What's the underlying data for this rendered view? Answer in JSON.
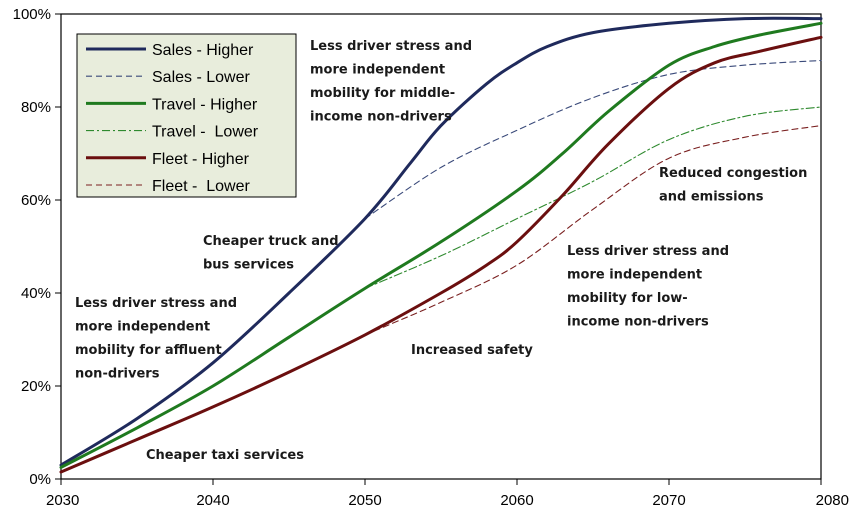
{
  "chart_data": {
    "type": "line",
    "title": "",
    "xlabel": "",
    "ylabel": "",
    "xlim": [
      2030,
      2080
    ],
    "ylim": [
      0,
      100
    ],
    "x_ticks": [
      2030,
      2040,
      2050,
      2060,
      2070,
      2080
    ],
    "y_ticks": [
      0,
      20,
      40,
      60,
      80,
      100
    ],
    "x_tick_labels": [
      "2030",
      "2040",
      "2050",
      "2060",
      "2070",
      "2080"
    ],
    "y_tick_labels": [
      "0%",
      "20%",
      "40%",
      "60%",
      "80%",
      "100%"
    ],
    "grid": false,
    "legend_position": "top-left",
    "series": [
      {
        "name": "Sales - Higher",
        "color": "#1f2a5c",
        "style": "solid",
        "x": [
          2030,
          2035,
          2040,
          2045,
          2050,
          2053,
          2055,
          2058,
          2060,
          2062,
          2065,
          2070,
          2075,
          2080
        ],
        "y": [
          3,
          13,
          25,
          40,
          56,
          68,
          76,
          85,
          89.5,
          93,
          96,
          98,
          99,
          99
        ]
      },
      {
        "name": "Sales - Lower",
        "color": "#3a4a7a",
        "style": "dashed",
        "x": [
          2050,
          2055,
          2060,
          2065,
          2070,
          2075,
          2080
        ],
        "y": [
          56,
          67,
          75,
          82,
          87,
          89,
          90
        ]
      },
      {
        "name": "Travel - Higher",
        "color": "#1f7a1f",
        "style": "solid",
        "x": [
          2030,
          2035,
          2040,
          2045,
          2050,
          2055,
          2060,
          2063,
          2066,
          2070,
          2073,
          2076,
          2080
        ],
        "y": [
          2.5,
          11,
          20,
          30.5,
          41,
          51,
          62,
          70,
          79,
          89,
          93,
          95.5,
          98
        ]
      },
      {
        "name": "Travel -  Lower",
        "color": "#2f8a2f",
        "style": "dashdot",
        "x": [
          2050,
          2055,
          2060,
          2065,
          2070,
          2075,
          2080
        ],
        "y": [
          41,
          48,
          56,
          64,
          73,
          78,
          80
        ]
      },
      {
        "name": "Fleet - Higher",
        "color": "#6b0f0f",
        "style": "solid",
        "x": [
          2030,
          2035,
          2040,
          2045,
          2050,
          2055,
          2058,
          2060,
          2063,
          2066,
          2070,
          2073,
          2076,
          2080
        ],
        "y": [
          1.5,
          8.5,
          15.5,
          23,
          31,
          40,
          46,
          51,
          61,
          72,
          84,
          89.5,
          92,
          95
        ]
      },
      {
        "name": "Fleet -  Lower",
        "color": "#7a2020",
        "style": "dashed",
        "x": [
          2050,
          2055,
          2060,
          2065,
          2070,
          2075,
          2080
        ],
        "y": [
          31,
          38,
          46,
          58,
          69,
          73.5,
          76
        ]
      }
    ],
    "annotations": [
      {
        "lines": [
          "Less driver stress and",
          "more independent",
          "mobility for middle-",
          "income non-drivers"
        ]
      },
      {
        "lines": [
          "Cheaper truck and",
          "bus services"
        ]
      },
      {
        "lines": [
          "Less driver stress and",
          "more independent",
          "mobility for affluent",
          "non-drivers"
        ]
      },
      {
        "lines": [
          "Cheaper taxi services"
        ]
      },
      {
        "lines": [
          "Increased safety"
        ]
      },
      {
        "lines": [
          "Reduced congestion",
          "and emissions"
        ]
      },
      {
        "lines": [
          "Less driver stress and",
          "more independent",
          "mobility for low-",
          "income non-drivers"
        ]
      }
    ]
  }
}
